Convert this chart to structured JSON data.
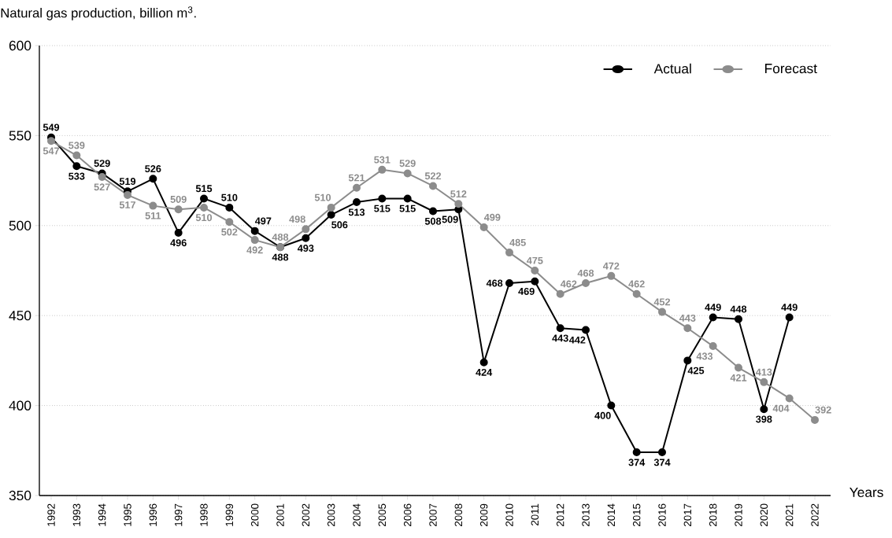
{
  "chart_data": {
    "type": "line",
    "title": "Natural gas production, billion m$^{3}$.",
    "xlabel": "Years",
    "categories": [
      "1992",
      "1993",
      "1994",
      "1995",
      "1996",
      "1997",
      "1998",
      "1999",
      "2000",
      "2001",
      "2002",
      "2003",
      "2004",
      "2005",
      "2006",
      "2007",
      "2008",
      "2009",
      "2010",
      "2011",
      "2012",
      "2013",
      "2014",
      "2015",
      "2016",
      "2017",
      "2018",
      "2019",
      "2020",
      "2021",
      "2022"
    ],
    "series": [
      {
        "name": "Actual",
        "color": "#000000",
        "values": [
          549,
          533,
          529,
          519,
          526,
          496,
          515,
          510,
          497,
          488,
          493,
          506,
          513,
          515,
          515,
          508,
          509,
          424,
          468,
          469,
          443,
          442,
          400,
          374,
          374,
          425,
          449,
          448,
          398,
          449,
          null
        ]
      },
      {
        "name": "Forecast",
        "color": "#8c8c8c",
        "values": [
          547,
          539,
          527,
          517,
          511,
          509,
          510,
          502,
          492,
          488,
          498,
          510,
          521,
          531,
          529,
          522,
          512,
          499,
          485,
          475,
          462,
          468,
          472,
          462,
          452,
          443,
          433,
          421,
          413,
          404,
          392
        ]
      }
    ],
    "ylim": [
      350,
      600
    ],
    "yticks": [
      350,
      400,
      450,
      500,
      550,
      600
    ],
    "grid": "y",
    "legend": "top right",
    "marker": "circle",
    "line_style": "solid",
    "data_labels": true
  }
}
